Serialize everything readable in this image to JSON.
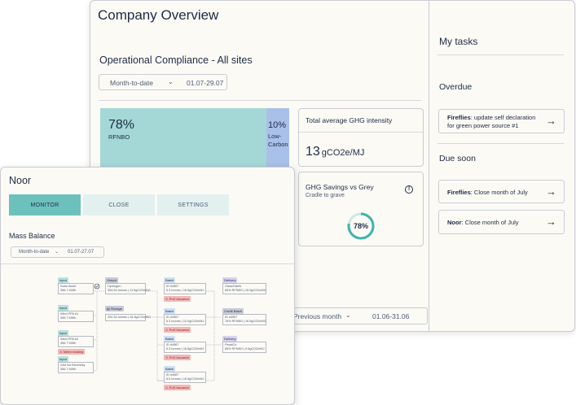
{
  "overview": {
    "title": "Company Overview",
    "section_title": "Operational Compliance - All sites",
    "date_filter": {
      "period": "Month-to-date",
      "range": "01.07-29.07"
    },
    "composition": {
      "rfnbo": {
        "percent": "78%",
        "label": "RFNBO",
        "share": 0.78
      },
      "low_carbon": {
        "percent": "10%",
        "label": "Low-Carbon",
        "share": 0.1
      }
    },
    "ghg_intensity": {
      "title": "Total average GHG intensity",
      "value": "13",
      "unit": "gCO2e/MJ"
    },
    "ghg_savings": {
      "title": "GHG Savings vs Grey",
      "subtitle": "Cradle to grave",
      "value": "78%",
      "fraction": 0.78
    },
    "date_filter_2": {
      "period": "Previous month",
      "range": "01.06-31.06"
    }
  },
  "tasks": {
    "title": "My tasks",
    "overdue_heading": "Overdue",
    "overdue": [
      {
        "bold": "Fireflies",
        "text": ": update self declaration for green power source #1"
      }
    ],
    "due_soon_heading": "Due soon",
    "due_soon": [
      {
        "bold": "Fireflies",
        "text": ": Close month of July"
      },
      {
        "bold": "Noor",
        "text": ": Close month of July"
      }
    ],
    "arrow": "→"
  },
  "noor": {
    "title": "Noor",
    "tabs": [
      "MONITOR",
      "CLOSE",
      "SETTINGS"
    ],
    "active_tab": "MONITOR",
    "mass_balance_title": "Mass Balance",
    "date_filter": {
      "period": "Month-to-date",
      "range": "01.07-27.07"
    },
    "flow": {
      "inputs": [
        {
          "tag": "Input",
          "line1": "Solar Asset",
          "line2": "356.7 MWh"
        },
        {
          "tag": "Input",
          "line1": "Wind PPA #1",
          "line2": "356.7 MWh"
        },
        {
          "tag": "Input",
          "line1": "Wind PPA #2",
          "line2": "356.7 MWh",
          "warning": "Meter reading"
        },
        {
          "tag": "Input",
          "line1": "Grid No Electricity",
          "line2": "356.7 MWh"
        }
      ],
      "output": {
        "tag": "Output",
        "line1": "Hydrogen",
        "line2": "354.54 tonnes | 11.5gCO2e/MJ"
      },
      "storage": {
        "tag": "Storage",
        "line1": "200.34 tonnes | 16.5gCO2e/MJ"
      },
      "batches": [
        {
          "tag": "Batch",
          "line1": "ID #4567",
          "line2": "5.3 tonnes | 16.5gCO2e/MJ",
          "warning": "PoS Issuance"
        },
        {
          "tag": "Batch",
          "line1": "ID #4567",
          "line2": "5.3 tonnes | 10.0gCO2e/MJ",
          "warning": "PoS Issuance"
        },
        {
          "tag": "Batch",
          "line1": "ID #4567",
          "line2": "5.3 tonnes | 16.5gCO2e/MJ",
          "warning": "PoS Issuance"
        },
        {
          "tag": "Batch",
          "line1": "ID #4567",
          "line2": "8.5 tonnes | 16.5gCO2e/MJ",
          "warning": "PoS Issuance"
        }
      ],
      "deliveries": [
        {
          "tag": "Delivery",
          "line1": "GlassFabrik",
          "line2": "65% RFNBO | 16.5gCO2e/MJ"
        },
        {
          "tag": "Credit Batch",
          "line1": "ID #4567",
          "line2": "76% RFNBO | 16.5gCO2e/MJ"
        },
        {
          "tag": "Delivery",
          "line1": "PepsiCo",
          "line2": "85% RFNBO | 9.5gCO2e/MJ"
        }
      ]
    }
  },
  "colors": {
    "rfnbo": "#a4d8d6",
    "low_carbon": "#a9c1e8",
    "accent": "#6dc1bc",
    "ring": "#3fb3ad",
    "warning": "#f2b8b8"
  }
}
